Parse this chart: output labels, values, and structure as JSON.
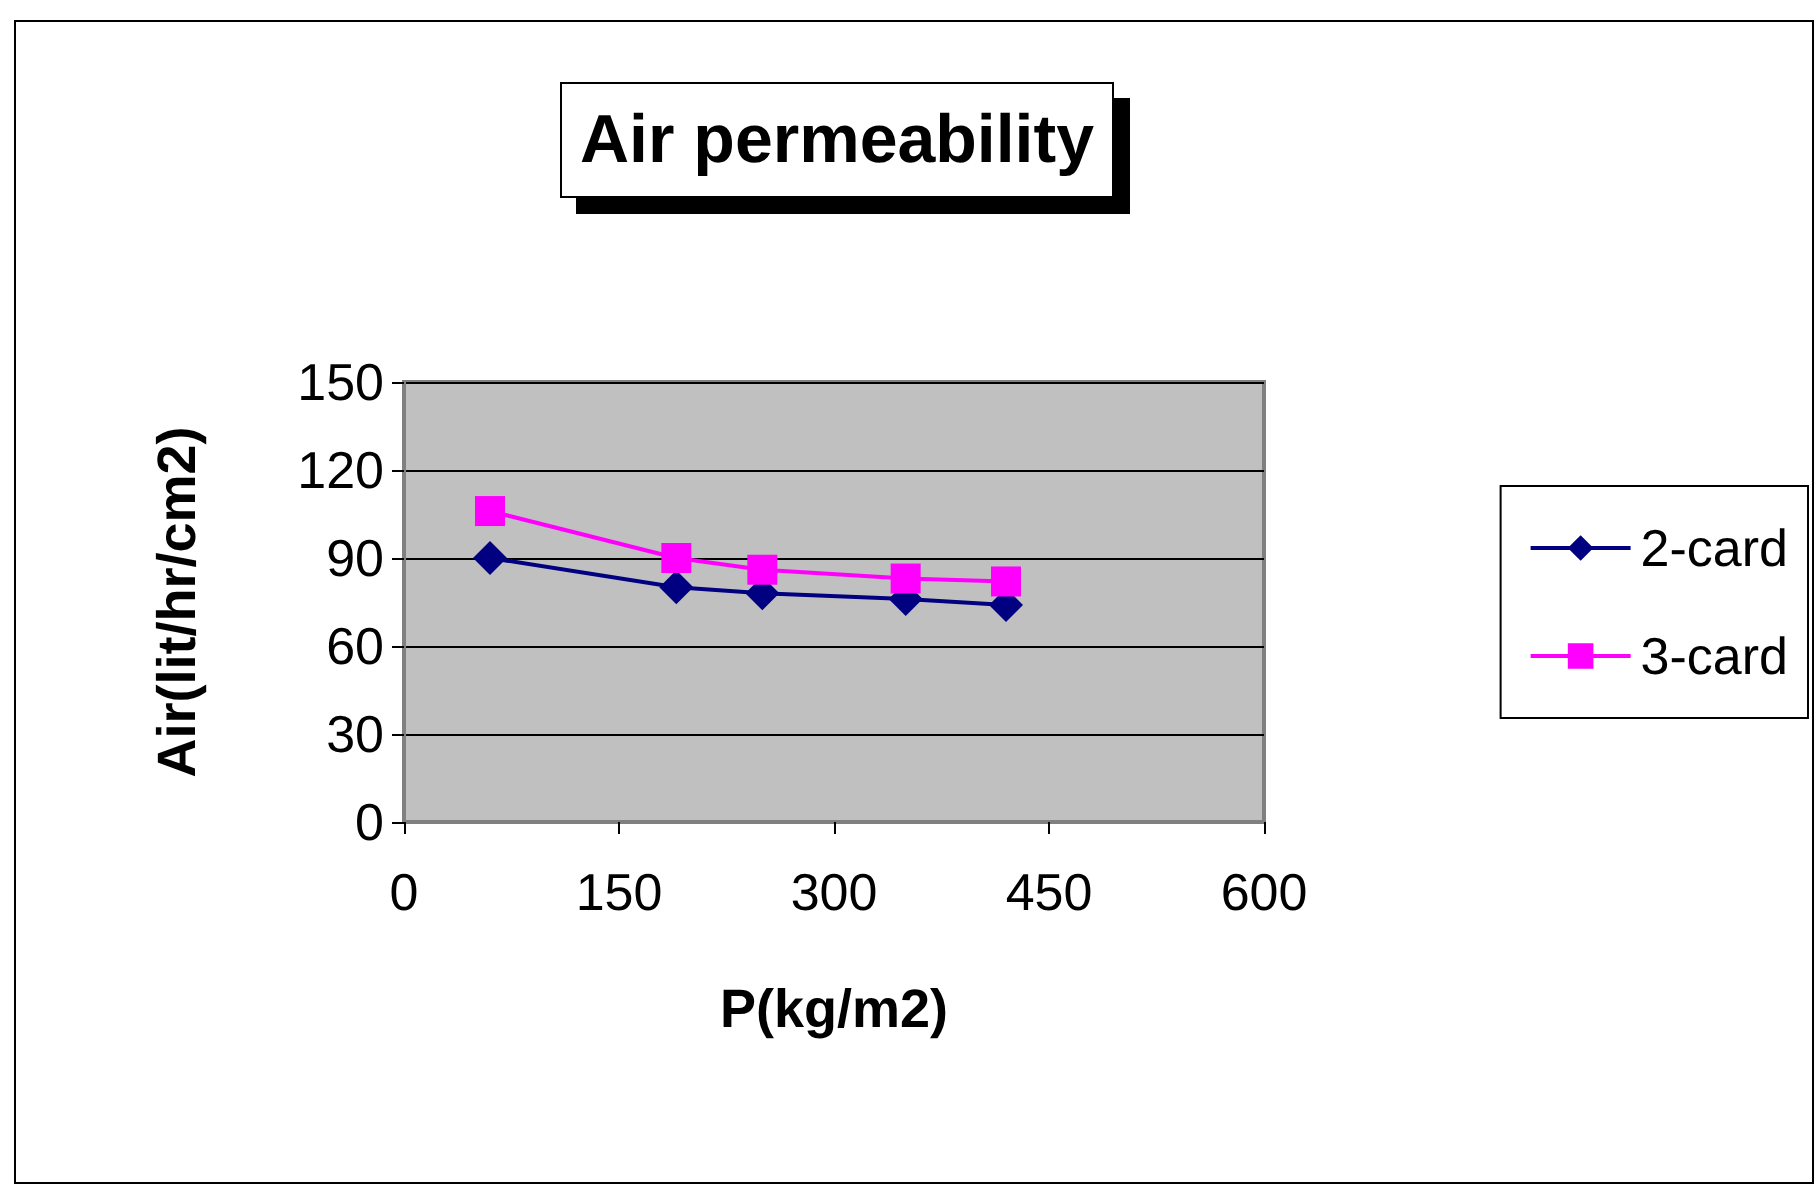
{
  "chart_data": {
    "type": "line",
    "title": "Air permeability",
    "xlabel": "P(kg/m2)",
    "ylabel": "Air(lit/hr/cm2)",
    "xlim": [
      0,
      600
    ],
    "xticks": [
      0,
      150,
      300,
      450,
      600
    ],
    "ylim": [
      0,
      150
    ],
    "yticks": [
      0,
      30,
      60,
      90,
      120,
      150
    ],
    "grid": "y",
    "legend": "right",
    "series": [
      {
        "name": "2-card",
        "color": "#000080",
        "marker": "diamond",
        "x": [
          60,
          190,
          250,
          350,
          420
        ],
        "values": [
          90,
          80,
          78,
          76,
          74
        ]
      },
      {
        "name": "3-card",
        "color": "#ff00ff",
        "marker": "square",
        "x": [
          60,
          190,
          250,
          350,
          420
        ],
        "values": [
          106,
          90,
          86,
          83,
          82
        ]
      }
    ]
  }
}
